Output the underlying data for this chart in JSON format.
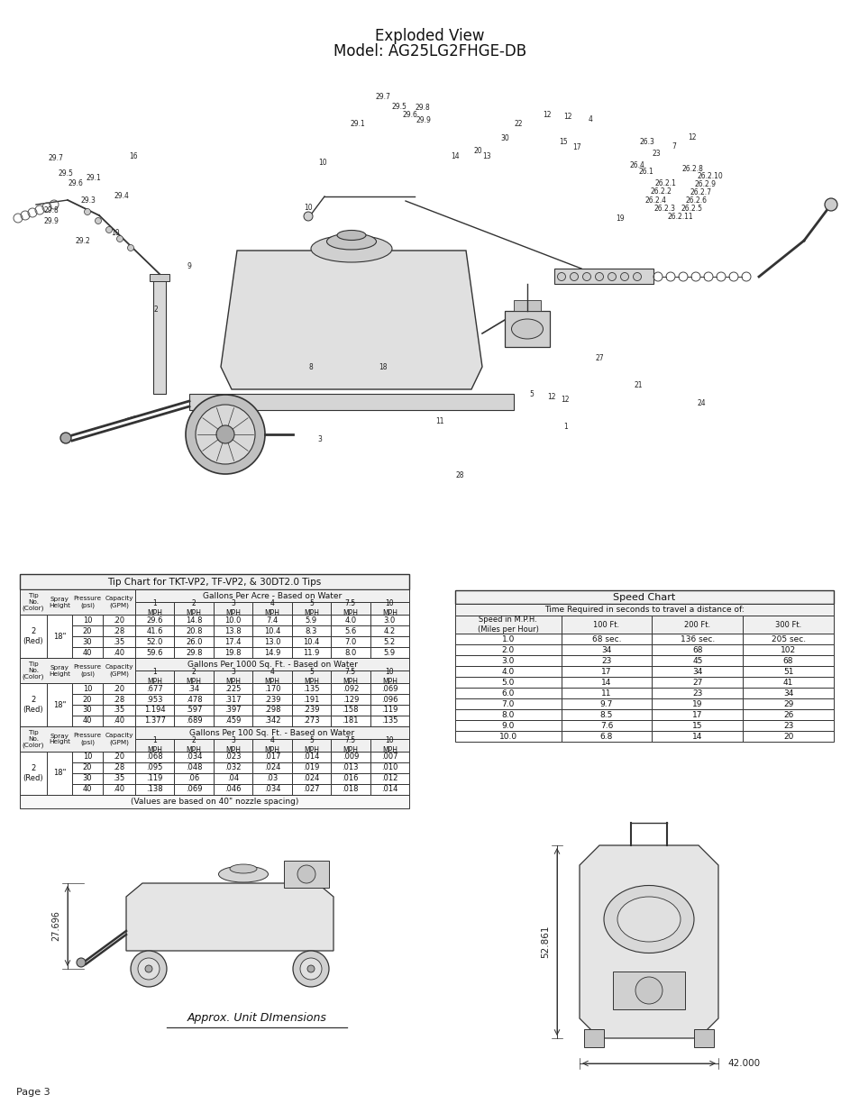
{
  "title_line1": "Exploded View",
  "title_line2": "Model: AG25LG2FHGE-DB",
  "page_label": "Page 3",
  "approx_dim_label": "Approx. Unit DImensions",
  "dim_width": "42.000",
  "dim_depth": "52.861",
  "dim_height": "27.696",
  "tip_chart_title": "Tip Chart for TKT-VP2, TF-VP2, & 30DT2.0 Tips",
  "tip_chart_section1_header": "Gallons Per Acre - Based on Water",
  "tip_chart_section2_header": "Gallons Per 1000 Sq. Ft. - Based on Water",
  "tip_chart_section3_header": "Gallons Per 100 Sq. Ft. - Based on Water",
  "tip_chart_footer": "(Values are based on 40\" nozzle spacing)",
  "speed_chart_title": "Speed Chart",
  "speed_chart_subheader": "Time Required in seconds to travel a distance of:",
  "speed_col_headers": [
    "Speed in M.P.H.\n(Miles per Hour)",
    "100 Ft.",
    "200 Ft.",
    "300 Ft."
  ],
  "speed_data": [
    [
      "1.0",
      "68 sec.",
      "136 sec.",
      "205 sec."
    ],
    [
      "2.0",
      "34",
      "68",
      "102"
    ],
    [
      "3.0",
      "23",
      "45",
      "68"
    ],
    [
      "4.0",
      "17",
      "34",
      "51"
    ],
    [
      "5.0",
      "14",
      "27",
      "41"
    ],
    [
      "6.0",
      "11",
      "23",
      "34"
    ],
    [
      "7.0",
      "9.7",
      "19",
      "29"
    ],
    [
      "8.0",
      "8.5",
      "17",
      "26"
    ],
    [
      "9.0",
      "7.6",
      "15",
      "23"
    ],
    [
      "10.0",
      "6.8",
      "14",
      "20"
    ]
  ],
  "mph_speeds": [
    "1\nMPH",
    "2\nMPH",
    "3\nMPH",
    "4\nMPH",
    "5\nMPH",
    "7.5\nMPH",
    "10\nMPH"
  ],
  "sec1_pressures": [
    "10",
    "20",
    "30",
    "40"
  ],
  "sec1_capacities": [
    ".20",
    ".28",
    ".35",
    ".40"
  ],
  "sec1_data": [
    [
      "29.6",
      "14.8",
      "10.0",
      "7.4",
      "5.9",
      "4.0",
      "3.0"
    ],
    [
      "41.6",
      "20.8",
      "13.8",
      "10.4",
      "8.3",
      "5.6",
      "4.2"
    ],
    [
      "52.0",
      "26.0",
      "17.4",
      "13.0",
      "10.4",
      "7.0",
      "5.2"
    ],
    [
      "59.6",
      "29.8",
      "19.8",
      "14.9",
      "11.9",
      "8.0",
      "5.9"
    ]
  ],
  "sec2_data": [
    [
      ".677",
      ".34",
      ".225",
      ".170",
      ".135",
      ".092",
      ".069"
    ],
    [
      ".953",
      ".478",
      ".317",
      ".239",
      ".191",
      ".129",
      ".096"
    ],
    [
      "1.194",
      ".597",
      ".397",
      ".298",
      ".239",
      ".158",
      ".119"
    ],
    [
      "1.377",
      ".689",
      ".459",
      ".342",
      ".273",
      ".181",
      ".135"
    ]
  ],
  "sec3_data": [
    [
      ".068",
      ".034",
      ".023",
      ".017",
      ".014",
      ".009",
      ".007"
    ],
    [
      ".095",
      ".048",
      ".032",
      ".024",
      ".019",
      ".013",
      ".010"
    ],
    [
      ".119",
      ".06",
      ".04",
      ".03",
      ".024",
      ".016",
      ".012"
    ],
    [
      ".138",
      ".069",
      ".046",
      ".034",
      ".027",
      ".018",
      ".014"
    ]
  ],
  "background_color": "#ffffff",
  "text_color": "#1a1a1a"
}
